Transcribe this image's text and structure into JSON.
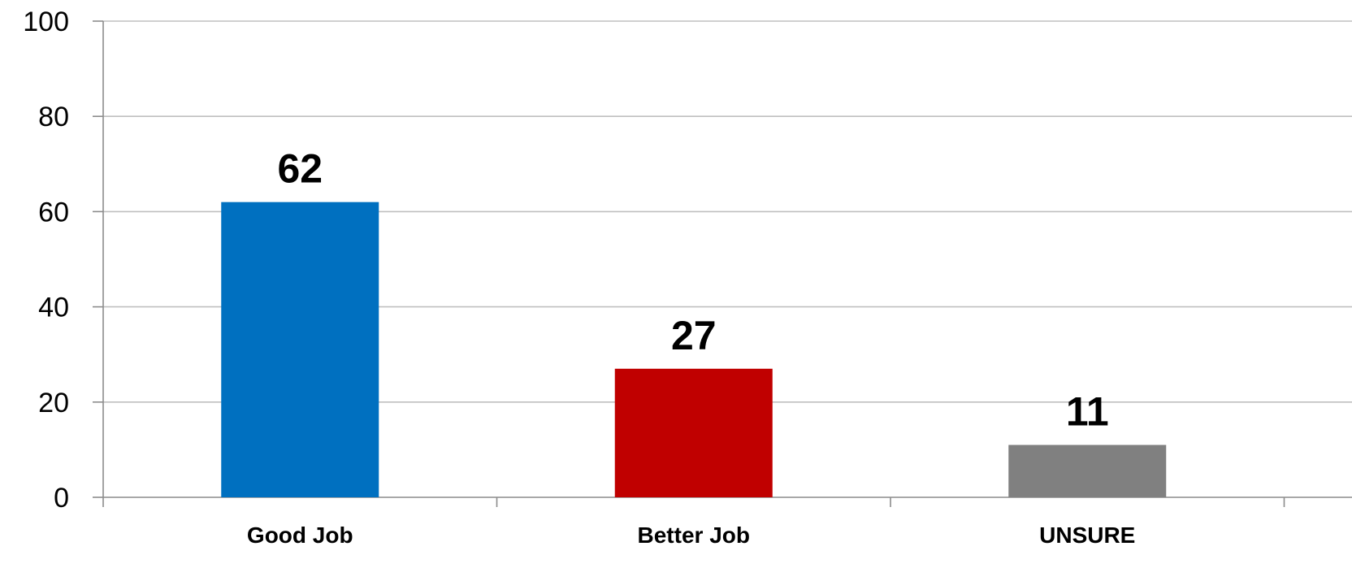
{
  "chart_data": {
    "type": "bar",
    "categories": [
      "Good Job",
      "Better Job",
      "UNSURE"
    ],
    "values": [
      62,
      27,
      11
    ],
    "data_labels": [
      "62",
      "27",
      "11"
    ],
    "colors": [
      "#0070c0",
      "#c00000",
      "#808080"
    ],
    "ylim": [
      0,
      100
    ],
    "yticks": [
      0,
      20,
      40,
      60,
      80,
      100
    ],
    "ytick_labels": [
      "0",
      "20",
      "40",
      "60",
      "80",
      "100"
    ],
    "grid": true,
    "legend": "none",
    "title": "",
    "xlabel": "",
    "ylabel": ""
  }
}
